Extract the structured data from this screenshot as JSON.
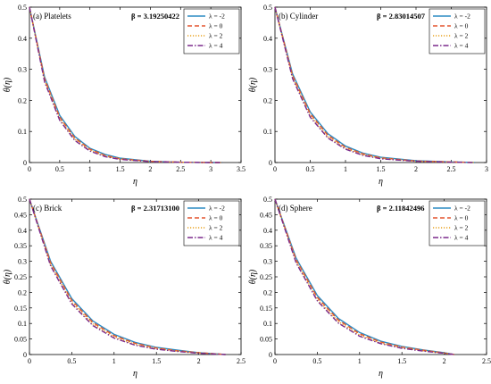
{
  "chart_data": [
    {
      "type": "line",
      "panel_label": "(a) Platelets",
      "annotation": "β = 3.19250422",
      "xlabel": "η",
      "ylabel": "θ(η)",
      "xlim": [
        0,
        3.5
      ],
      "ylim": [
        0,
        0.5
      ],
      "xticks": [
        "0",
        "0.5",
        "1",
        "1.5",
        "2",
        "2.5",
        "3",
        "3.5"
      ],
      "yticks": [
        "0",
        "0.1",
        "0.2",
        "0.3",
        "0.4",
        "0.5"
      ],
      "legend_position": "top-right",
      "x": [
        0,
        0.25,
        0.5,
        0.75,
        1.0,
        1.25,
        1.5,
        2.0,
        2.5,
        3.0,
        3.19
      ],
      "series": [
        {
          "name": "λ = -2",
          "values": [
            0.5,
            0.275,
            0.152,
            0.084,
            0.046,
            0.026,
            0.014,
            0.004,
            0.001,
            0.0,
            0.0
          ]
        },
        {
          "name": "λ = 0",
          "values": [
            0.5,
            0.27,
            0.146,
            0.079,
            0.043,
            0.023,
            0.012,
            0.004,
            0.001,
            0.0,
            0.0
          ]
        },
        {
          "name": "λ = 2",
          "values": [
            0.5,
            0.265,
            0.141,
            0.075,
            0.04,
            0.021,
            0.011,
            0.003,
            0.001,
            0.0,
            0.0
          ]
        },
        {
          "name": "λ = 4",
          "values": [
            0.5,
            0.26,
            0.136,
            0.071,
            0.037,
            0.019,
            0.01,
            0.003,
            0.001,
            0.0,
            0.0
          ]
        }
      ]
    },
    {
      "type": "line",
      "panel_label": "(b) Cylinder",
      "annotation": "β = 2.83014507",
      "xlabel": "η",
      "ylabel": "θ(η)",
      "xlim": [
        0,
        3
      ],
      "ylim": [
        0,
        0.5
      ],
      "xticks": [
        "0",
        "0.5",
        "1",
        "1.5",
        "2",
        "2.5",
        "3"
      ],
      "yticks": [
        "0",
        "0.1",
        "0.2",
        "0.3",
        "0.4",
        "0.5"
      ],
      "legend_position": "top-right",
      "x": [
        0,
        0.25,
        0.5,
        0.75,
        1.0,
        1.25,
        1.5,
        2.0,
        2.5,
        2.83
      ],
      "series": [
        {
          "name": "λ = -2",
          "values": [
            0.5,
            0.285,
            0.163,
            0.093,
            0.053,
            0.03,
            0.017,
            0.006,
            0.002,
            0.0
          ]
        },
        {
          "name": "λ = 0",
          "values": [
            0.5,
            0.28,
            0.157,
            0.088,
            0.049,
            0.028,
            0.015,
            0.005,
            0.002,
            0.0
          ]
        },
        {
          "name": "λ = 2",
          "values": [
            0.5,
            0.275,
            0.151,
            0.083,
            0.046,
            0.025,
            0.014,
            0.004,
            0.001,
            0.0
          ]
        },
        {
          "name": "λ = 4",
          "values": [
            0.5,
            0.27,
            0.146,
            0.079,
            0.043,
            0.023,
            0.012,
            0.004,
            0.001,
            0.0
          ]
        }
      ]
    },
    {
      "type": "line",
      "panel_label": "(c) Brick",
      "annotation": "β = 2.31713100",
      "xlabel": "η",
      "ylabel": "θ(η)",
      "xlim": [
        0,
        2.5
      ],
      "ylim": [
        0,
        0.5
      ],
      "xticks": [
        "0",
        "0.5",
        "1",
        "1.5",
        "2",
        "2.5"
      ],
      "yticks": [
        "0",
        "0.05",
        "0.1",
        "0.15",
        "0.2",
        "0.25",
        "0.3",
        "0.35",
        "0.4",
        "0.45",
        "0.5"
      ],
      "legend_position": "top-right",
      "x": [
        0,
        0.25,
        0.5,
        0.75,
        1.0,
        1.25,
        1.5,
        1.75,
        2.0,
        2.317
      ],
      "series": [
        {
          "name": "λ = -2",
          "values": [
            0.5,
            0.3,
            0.18,
            0.108,
            0.065,
            0.039,
            0.023,
            0.014,
            0.006,
            0.0
          ]
        },
        {
          "name": "λ = 0",
          "values": [
            0.5,
            0.295,
            0.174,
            0.103,
            0.061,
            0.036,
            0.021,
            0.012,
            0.006,
            0.0
          ]
        },
        {
          "name": "λ = 2",
          "values": [
            0.5,
            0.29,
            0.168,
            0.098,
            0.057,
            0.033,
            0.019,
            0.011,
            0.005,
            0.0
          ]
        },
        {
          "name": "λ = 4",
          "values": [
            0.5,
            0.285,
            0.163,
            0.093,
            0.053,
            0.03,
            0.017,
            0.01,
            0.004,
            0.0
          ]
        }
      ]
    },
    {
      "type": "line",
      "panel_label": "(d) Sphere",
      "annotation": "β = 2.11842496",
      "xlabel": "η",
      "ylabel": "θ(η)",
      "xlim": [
        0,
        2.5
      ],
      "ylim": [
        0,
        0.5
      ],
      "xticks": [
        "0",
        "0.5",
        "1",
        "1.5",
        "2",
        "2.5"
      ],
      "yticks": [
        "0",
        "0.05",
        "0.1",
        "0.15",
        "0.2",
        "0.25",
        "0.3",
        "0.35",
        "0.4",
        "0.45",
        "0.5"
      ],
      "legend_position": "top-right",
      "x": [
        0,
        0.25,
        0.5,
        0.75,
        1.0,
        1.25,
        1.5,
        1.75,
        2.0,
        2.118
      ],
      "series": [
        {
          "name": "λ = -2",
          "values": [
            0.5,
            0.31,
            0.19,
            0.116,
            0.071,
            0.043,
            0.026,
            0.015,
            0.006,
            0.0
          ]
        },
        {
          "name": "λ = 0",
          "values": [
            0.5,
            0.305,
            0.184,
            0.111,
            0.067,
            0.04,
            0.024,
            0.014,
            0.005,
            0.0
          ]
        },
        {
          "name": "λ = 2",
          "values": [
            0.5,
            0.3,
            0.178,
            0.106,
            0.063,
            0.037,
            0.022,
            0.012,
            0.005,
            0.0
          ]
        },
        {
          "name": "λ = 4",
          "values": [
            0.5,
            0.295,
            0.173,
            0.101,
            0.059,
            0.035,
            0.02,
            0.011,
            0.004,
            0.0
          ]
        }
      ]
    }
  ],
  "series_styles": [
    {
      "color": "#2b8cc4",
      "dash": ""
    },
    {
      "color": "#e3542f",
      "dash": "5,3"
    },
    {
      "color": "#e8a21f",
      "dash": "1.2,1.8"
    },
    {
      "color": "#7b2a8c",
      "dash": "6,2,1.5,2"
    }
  ]
}
